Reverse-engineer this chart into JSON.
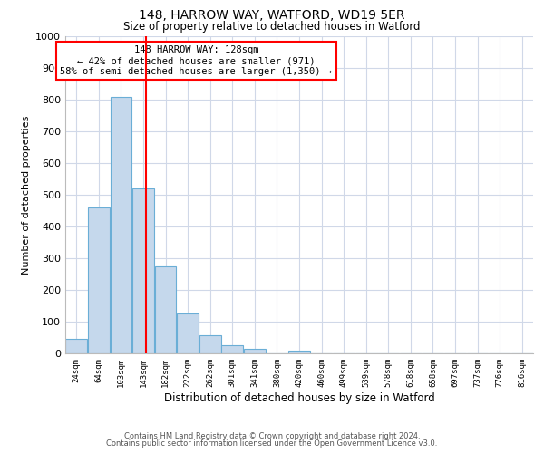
{
  "title1": "148, HARROW WAY, WATFORD, WD19 5ER",
  "title2": "Size of property relative to detached houses in Watford",
  "xlabel": "Distribution of detached houses by size in Watford",
  "ylabel": "Number of detached properties",
  "bar_labels": [
    "24sqm",
    "64sqm",
    "103sqm",
    "143sqm",
    "182sqm",
    "222sqm",
    "262sqm",
    "301sqm",
    "341sqm",
    "380sqm",
    "420sqm",
    "460sqm",
    "499sqm",
    "539sqm",
    "578sqm",
    "618sqm",
    "658sqm",
    "697sqm",
    "737sqm",
    "776sqm",
    "816sqm"
  ],
  "bar_heights": [
    47,
    460,
    810,
    520,
    275,
    125,
    57,
    25,
    14,
    0,
    8,
    0,
    0,
    0,
    0,
    0,
    0,
    0,
    0,
    0,
    0
  ],
  "bar_color": "#c5d8ec",
  "bar_edge_color": "#6aaed6",
  "vline_color": "red",
  "annotation_text": "148 HARROW WAY: 128sqm\n← 42% of detached houses are smaller (971)\n58% of semi-detached houses are larger (1,350) →",
  "annotation_box_color": "white",
  "annotation_box_edge": "red",
  "ylim": [
    0,
    1000
  ],
  "yticks": [
    0,
    100,
    200,
    300,
    400,
    500,
    600,
    700,
    800,
    900,
    1000
  ],
  "footer1": "Contains HM Land Registry data © Crown copyright and database right 2024.",
  "footer2": "Contains public sector information licensed under the Open Government Licence v3.0.",
  "bg_color": "#ffffff",
  "grid_color": "#d0d8e8"
}
